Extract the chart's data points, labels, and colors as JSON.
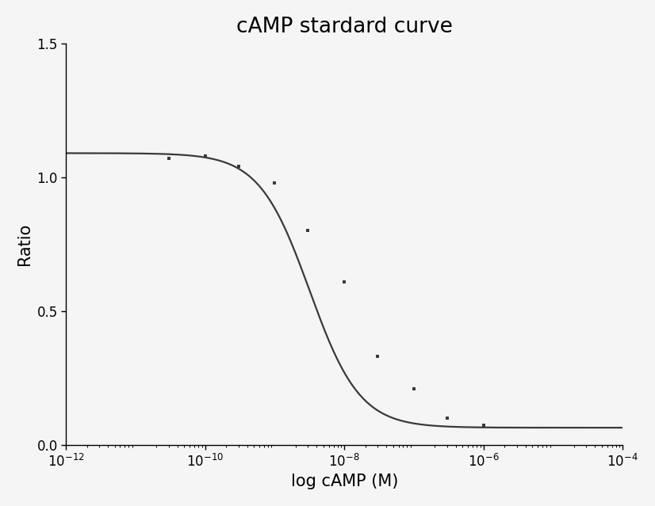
{
  "title": "cAMP stardard curve",
  "xlabel": "log cAMP (M)",
  "ylabel": "Ratio",
  "xlim_log": [
    -12,
    -4
  ],
  "ylim": [
    0.0,
    1.5
  ],
  "yticks": [
    0.0,
    0.5,
    1.0,
    1.5
  ],
  "xtick_exponents": [
    -12,
    -10,
    -8,
    -6,
    -4
  ],
  "data_points_x": [
    3e-11,
    1e-10,
    3e-10,
    1e-09,
    3e-09,
    1e-08,
    3e-08,
    1e-07,
    3e-07,
    1e-06
  ],
  "data_points_y": [
    1.07,
    1.08,
    1.04,
    0.98,
    0.8,
    0.61,
    0.33,
    0.21,
    0.1,
    0.075
  ],
  "line_color": "#3a3a3a",
  "marker_color": "#3a3a3a",
  "background_color": "#f5f5f5",
  "title_fontsize": 19,
  "label_fontsize": 15,
  "tick_fontsize": 12
}
